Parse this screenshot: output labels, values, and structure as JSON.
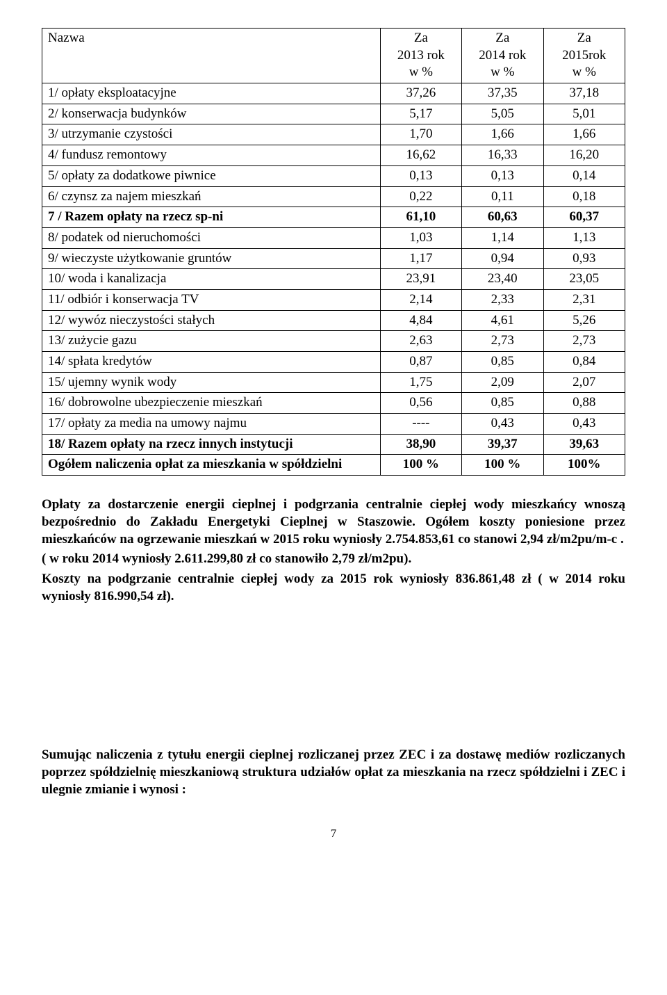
{
  "table": {
    "header": {
      "name": "Nazwa",
      "col1_line1": "Za",
      "col1_line2": "2013 rok",
      "col1_line3": "w %",
      "col2_line1": "Za",
      "col2_line2": "2014 rok",
      "col2_line3": "w %",
      "col3_line1": "Za",
      "col3_line2": "2015rok",
      "col3_line3": "w %"
    },
    "rows": [
      {
        "name": "1/ opłaty eksploatacyjne",
        "v1": "37,26",
        "v2": "37,35",
        "v3": "37,18",
        "bold": false
      },
      {
        "name": "2/ konserwacja budynków",
        "v1": "5,17",
        "v2": "5,05",
        "v3": "5,01",
        "bold": false
      },
      {
        "name": "3/ utrzymanie czystości",
        "v1": "1,70",
        "v2": "1,66",
        "v3": "1,66",
        "bold": false
      },
      {
        "name": "4/ fundusz remontowy",
        "v1": "16,62",
        "v2": "16,33",
        "v3": "16,20",
        "bold": false
      },
      {
        "name": "5/ opłaty za dodatkowe piwnice",
        "v1": "0,13",
        "v2": "0,13",
        "v3": "0,14",
        "bold": false
      },
      {
        "name": "6/ czynsz za najem mieszkań",
        "v1": "0,22",
        "v2": "0,11",
        "v3": "0,18",
        "bold": false
      },
      {
        "name": "7 / Razem  opłaty na rzecz sp-ni",
        "v1": "61,10",
        "v2": "60,63",
        "v3": "60,37",
        "bold": true
      },
      {
        "name": "8/  podatek od nieruchomości",
        "v1": "1,03",
        "v2": "1,14",
        "v3": "1,13",
        "bold": false
      },
      {
        "name": "9/  wieczyste użytkowanie gruntów",
        "v1": "1,17",
        "v2": "0,94",
        "v3": "0,93",
        "bold": false
      },
      {
        "name": "10/ woda i kanalizacja",
        "v1": "23,91",
        "v2": "23,40",
        "v3": "23,05",
        "bold": false
      },
      {
        "name": "11/ odbiór i konserwacja TV",
        "v1": "2,14",
        "v2": "2,33",
        "v3": "2,31",
        "bold": false
      },
      {
        "name": "12/ wywóz nieczystości stałych",
        "v1": "4,84",
        "v2": "4,61",
        "v3": "5,26",
        "bold": false
      },
      {
        "name": "13/ zużycie gazu",
        "v1": "2,63",
        "v2": "2,73",
        "v3": "2,73",
        "bold": false
      },
      {
        "name": "14/ spłata kredytów",
        "v1": "0,87",
        "v2": "0,85",
        "v3": "0,84",
        "bold": false
      },
      {
        "name": "15/ ujemny wynik wody",
        "v1": "1,75",
        "v2": "2,09",
        "v3": "2,07",
        "bold": false
      },
      {
        "name": "16/ dobrowolne ubezpieczenie mieszkań",
        "v1": "0,56",
        "v2": "0,85",
        "v3": "0,88",
        "bold": false
      },
      {
        "name": "17/ opłaty za media na umowy najmu",
        "v1": "----",
        "v2": "0,43",
        "v3": "0,43",
        "bold": false
      },
      {
        "name": "18/   Razem opłaty na rzecz innych instytucji",
        "v1": "38,90",
        "v2": "39,37",
        "v3": "39,63",
        "bold": true
      },
      {
        "name": "Ogółem   naliczenia opłat za mieszkania w spółdzielni",
        "v1": "100 %",
        "v2": "100 %",
        "v3": "100%",
        "bold": true
      }
    ]
  },
  "paragraphs": {
    "p1": "Opłaty za dostarczenie energii cieplnej i podgrzania centralnie ciepłej wody mieszkańcy wnoszą bezpośrednio do Zakładu Energetyki Cieplnej  w Staszowie. Ogółem  koszty poniesione przez mieszkańców na ogrzewanie mieszkań w 2015 roku wyniosły   2.754.853,61 co stanowi  2,94 zł/m2pu/m-c .",
    "p2": " ( w roku 2014  wyniosły 2.611.299,80 zł  co stanowiło 2,79 zł/m2pu).",
    "p3": "Koszty na podgrzanie  centralnie ciepłej wody za 2015 rok  wyniosły  836.861,48 zł ( w 2014 roku wyniosły   816.990,54 zł).",
    "p4": "Sumując  naliczenia z tytułu energii cieplnej rozliczanej przez ZEC  i za dostawę mediów  rozliczanych  poprzez spółdzielnię mieszkaniową  struktura udziałów opłat za mieszkania na rzecz spółdzielni  i ZEC i ulegnie zmianie i  wynosi :"
  },
  "page_number": "7"
}
